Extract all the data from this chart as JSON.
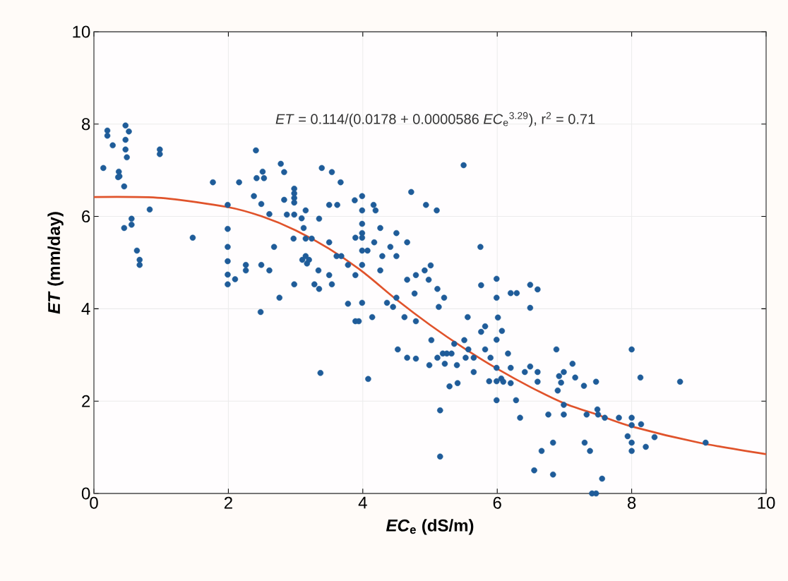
{
  "chart_data": {
    "type": "scatter",
    "xlabel": "*EC*$_{e}$ (dS/m)",
    "ylabel": "*ET* (mm/day)",
    "annotations": [
      "*ET* = 0.114/(0.0178 + 0.0000586 *EC*$_{e}$$^{3.29}$), r$^{2}$ = 0.71"
    ],
    "xlim": [
      0,
      10
    ],
    "ylim": [
      0,
      10
    ],
    "xticks": [
      0,
      2,
      4,
      6,
      8,
      10
    ],
    "yticks": [
      0,
      2,
      4,
      6,
      8,
      10
    ],
    "grid": true,
    "marker": "circle",
    "series": [
      {
        "color": "#1f5c99",
        "x": [
          0.14,
          0.2,
          0.2,
          0.28,
          0.47,
          0.52,
          0.47,
          0.47,
          0.49,
          0.37,
          0.36,
          0.38,
          0.45,
          0.98,
          0.98,
          0.83,
          0.56,
          0.56,
          0.45,
          0.64,
          0.68,
          0.68,
          1.47,
          1.77,
          2.16,
          2.41,
          2.78,
          2.83,
          2.51,
          2.42,
          2.53,
          2.38,
          2.49,
          2.83,
          2.98,
          2.98,
          2.98,
          2.98,
          3.39,
          3.54,
          3.67,
          3.5,
          3.62,
          1.99,
          2.61,
          2.87,
          2.98,
          3.15,
          3.09,
          3.35,
          3.12,
          1.99,
          2.97,
          3.15,
          3.24,
          3.5,
          2.68,
          1.99,
          3.61,
          3.68,
          3.78,
          3.1,
          3.15,
          3.17,
          3.2,
          1.99,
          2.26,
          2.26,
          2.49,
          2.61,
          1.99,
          1.99,
          2.1,
          3.34,
          3.5,
          2.98,
          3.28,
          3.35,
          3.54,
          2.76,
          2.48,
          3.78,
          3.37,
          3.88,
          3.99,
          3.99,
          4.16,
          4.19,
          4.72,
          4.94,
          5.1,
          5.5,
          3.99,
          3.99,
          3.99,
          3.89,
          3.99,
          4.07,
          4.26,
          4.17,
          4.5,
          4.41,
          4.66,
          4.29,
          4.5,
          3.99,
          3.89,
          4.26,
          4.66,
          4.79,
          4.92,
          5.01,
          4.98,
          4.77,
          5.11,
          5.21,
          5.13,
          4.5,
          4.45,
          4.36,
          3.99,
          3.89,
          3.94,
          4.14,
          4.62,
          4.79,
          4.08,
          4.52,
          4.66,
          4.79,
          5.02,
          4.99,
          5.11,
          5.19,
          5.25,
          5.32,
          5.22,
          5.36,
          5.4,
          5.29,
          5.41,
          5.15,
          5.15,
          5.51,
          5.56,
          5.57,
          5.53,
          5.65,
          5.65,
          5.75,
          5.76,
          5.76,
          5.82,
          5.82,
          5.9,
          5.88,
          5.99,
          6.49,
          6.6,
          6.2,
          6.29,
          6.49,
          5.99,
          6.01,
          6.07,
          5.99,
          6.16,
          5.99,
          6.2,
          5.99,
          6.06,
          6.09,
          6.2,
          5.99,
          6.28,
          6.34,
          6.41,
          6.49,
          6.6,
          6.6,
          6.88,
          6.76,
          6.83,
          6.66,
          6.55,
          6.83,
          6.92,
          6.99,
          6.95,
          6.9,
          6.99,
          6.99,
          7.12,
          7.16,
          7.29,
          7.47,
          7.33,
          7.49,
          7.5,
          7.6,
          7.3,
          7.38,
          7.56,
          7.41,
          7.47,
          7.81,
          8.0,
          8.0,
          8.0,
          8.14,
          7.94,
          8.0,
          8.0,
          8.21,
          8.34,
          8.13,
          8.72,
          9.1
        ],
        "values": [
          7.05,
          7.86,
          7.75,
          7.54,
          7.97,
          7.84,
          7.66,
          7.45,
          7.28,
          6.97,
          6.85,
          6.87,
          6.65,
          7.45,
          7.35,
          6.15,
          5.95,
          5.82,
          5.75,
          5.26,
          5.06,
          4.95,
          5.54,
          6.74,
          6.74,
          7.43,
          7.14,
          6.96,
          6.97,
          6.83,
          6.83,
          6.44,
          6.27,
          6.36,
          6.6,
          6.5,
          6.4,
          6.3,
          7.05,
          6.96,
          6.74,
          6.25,
          6.25,
          6.25,
          6.05,
          6.04,
          6.04,
          6.13,
          5.96,
          5.95,
          5.75,
          5.73,
          5.52,
          5.52,
          5.52,
          5.44,
          5.34,
          5.34,
          5.14,
          5.14,
          4.95,
          5.06,
          5.14,
          4.98,
          5.06,
          5.03,
          4.95,
          4.83,
          4.95,
          4.83,
          4.74,
          4.53,
          4.64,
          4.83,
          4.73,
          4.53,
          4.53,
          4.43,
          4.53,
          4.24,
          3.93,
          4.11,
          2.61,
          6.35,
          6.44,
          6.13,
          6.25,
          6.13,
          6.53,
          6.25,
          6.13,
          7.11,
          5.84,
          5.64,
          5.54,
          5.54,
          5.26,
          5.26,
          5.75,
          5.44,
          5.64,
          5.34,
          5.44,
          5.14,
          5.14,
          4.95,
          4.73,
          4.83,
          4.63,
          4.73,
          4.83,
          4.94,
          4.63,
          4.33,
          4.43,
          4.24,
          4.04,
          4.24,
          4.04,
          4.13,
          4.13,
          3.73,
          3.73,
          3.82,
          3.82,
          3.73,
          2.48,
          3.12,
          2.94,
          2.92,
          3.32,
          2.78,
          2.94,
          3.03,
          3.03,
          3.03,
          2.81,
          3.24,
          2.78,
          2.32,
          2.39,
          1.8,
          0.8,
          3.32,
          3.82,
          3.12,
          2.94,
          2.94,
          2.63,
          5.34,
          4.51,
          3.5,
          3.62,
          3.12,
          2.94,
          2.43,
          4.65,
          4.52,
          4.42,
          4.34,
          4.34,
          4.02,
          4.24,
          3.81,
          3.52,
          3.33,
          3.03,
          2.72,
          2.72,
          2.43,
          2.49,
          2.42,
          2.39,
          2.02,
          2.02,
          1.64,
          2.63,
          2.75,
          2.63,
          2.42,
          3.12,
          1.71,
          1.1,
          0.92,
          0.5,
          0.41,
          2.54,
          2.63,
          2.4,
          2.23,
          1.92,
          1.71,
          2.81,
          2.51,
          2.33,
          2.42,
          1.71,
          1.82,
          1.71,
          1.64,
          1.1,
          0.92,
          0.32,
          0.0,
          0.0,
          1.64,
          3.12,
          1.64,
          1.48,
          1.5,
          1.24,
          1.1,
          0.92,
          1.01,
          1.22,
          2.51,
          2.42,
          1.1
        ]
      },
      {
        "type": "line",
        "marker": "none",
        "color": "#e0532b",
        "x": [
          0,
          1,
          2,
          2.5,
          3,
          3.5,
          4,
          4.5,
          5,
          5.5,
          6,
          6.5,
          7,
          7.5,
          8,
          9,
          10
        ],
        "values": [
          6.42,
          6.4,
          6.2,
          6.0,
          5.7,
          5.3,
          4.8,
          4.2,
          3.65,
          3.15,
          2.7,
          2.3,
          1.95,
          1.7,
          1.45,
          1.1,
          0.85
        ]
      }
    ]
  }
}
